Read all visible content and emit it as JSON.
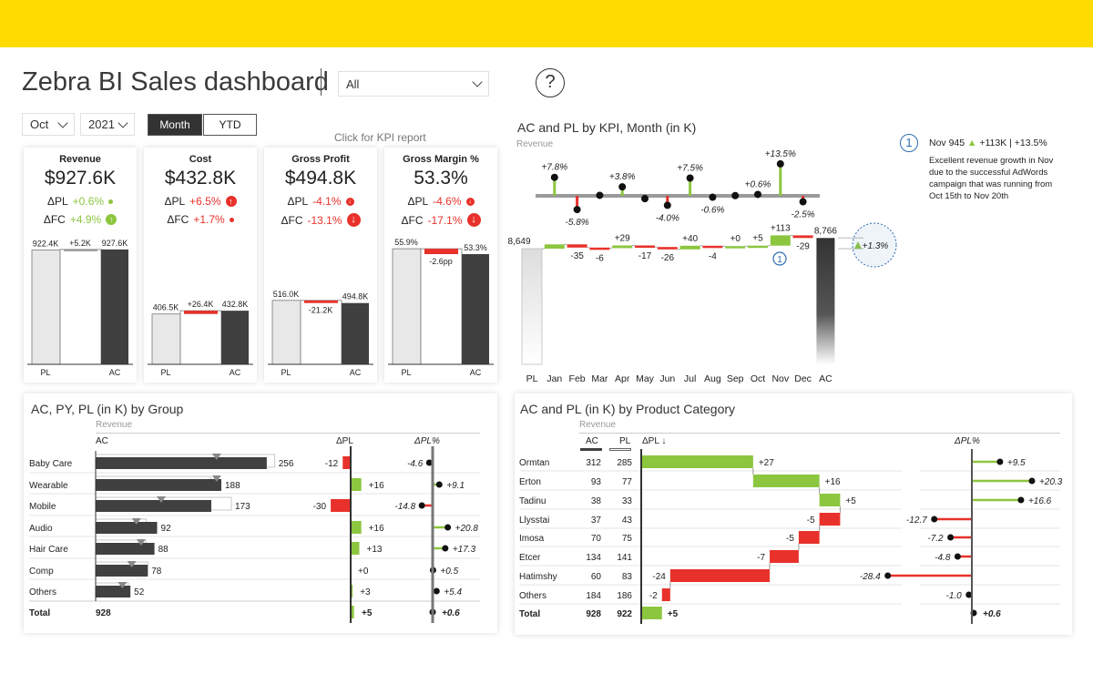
{
  "header": {
    "title": "Zebra BI Sales dashboard",
    "filter_value": "All",
    "help_label": "?"
  },
  "controls": {
    "month": "Oct",
    "year": "2021",
    "month_button": "Month",
    "ytd_button": "YTD",
    "kpi_link": "Click for KPI report"
  },
  "colors": {
    "brand_yellow": "#FFDB00",
    "good": "#8CC63F",
    "bad": "#E8312A",
    "ac": "#404040",
    "pl": "#E8E8E8",
    "annotation": "#2E6DB4"
  },
  "kpis": [
    {
      "title": "Revenue",
      "value": "$927.6K",
      "dpl_label": "ΔPL",
      "dpl": "+0.6%",
      "dpl_status": "good",
      "dpl_icon": "dot",
      "dfc_label": "ΔFC",
      "dfc": "+4.9%",
      "dfc_status": "good",
      "dfc_icon": "arrow-up-medium",
      "pl": 922.4,
      "ac": 927.6,
      "pl_label": "922.4K",
      "delta_label": "+5.2K",
      "ac_label": "927.6K",
      "x_pl": "PL",
      "x_ac": "AC"
    },
    {
      "title": "Cost",
      "value": "$432.8K",
      "dpl_label": "ΔPL",
      "dpl": "+6.5%",
      "dpl_status": "bad",
      "dpl_icon": "arrow-up-medium",
      "dfc_label": "ΔFC",
      "dfc": "+1.7%",
      "dfc_status": "bad",
      "dfc_icon": "dot",
      "pl": 406.5,
      "ac": 432.8,
      "pl_label": "406.5K",
      "delta_label": "+26.4K",
      "ac_label": "432.8K",
      "x_pl": "PL",
      "x_ac": "AC"
    },
    {
      "title": "Gross Profit",
      "value": "$494.8K",
      "dpl_label": "ΔPL",
      "dpl": "-4.1%",
      "dpl_status": "bad",
      "dpl_icon": "arrow-down-small",
      "dfc_label": "ΔFC",
      "dfc": "-13.1%",
      "dfc_status": "bad",
      "dfc_icon": "arrow-down-large",
      "pl": 516.0,
      "ac": 494.8,
      "pl_label": "516.0K",
      "delta_label": "-21.2K",
      "ac_label": "494.8K",
      "x_pl": "PL",
      "x_ac": "AC"
    },
    {
      "title": "Gross Margin %",
      "value": "53.3%",
      "dpl_label": "ΔPL",
      "dpl": "-4.6%",
      "dpl_status": "bad",
      "dpl_icon": "arrow-down-small",
      "dfc_label": "ΔFC",
      "dfc": "-17.1%",
      "dfc_status": "bad",
      "dfc_icon": "arrow-down-large",
      "pl": 55.9,
      "ac": 53.3,
      "pl_label": "55.9%",
      "delta_label": "-2.6pp",
      "ac_label": "53.3%",
      "x_pl": "PL",
      "x_ac": "AC"
    }
  ],
  "chart_data": [
    {
      "type": "waterfall",
      "title": "AC and PL by KPI, Month (in K)",
      "subtitle": "Revenue",
      "categories": [
        "PL",
        "Jan",
        "Feb",
        "Mar",
        "Apr",
        "May",
        "Jun",
        "Jul",
        "Aug",
        "Sep",
        "Oct",
        "Nov",
        "Dec",
        "AC"
      ],
      "start": 8649,
      "start_label": "8,649",
      "end": 8766,
      "end_label": "8,766",
      "deltas": [
        47,
        -35,
        -6,
        29,
        -17,
        -26,
        40,
        -4,
        0,
        5,
        113,
        -29
      ],
      "delta_labels": [
        "",
        "-35",
        "-6",
        "+29",
        "-17",
        "-26",
        "+40",
        "-4",
        "+0",
        "+5",
        "+113",
        "-29"
      ],
      "pct": [
        7.8,
        -5.8,
        0.2,
        3.8,
        -1.2,
        -4.0,
        7.5,
        -0.6,
        0.1,
        0.6,
        13.5,
        -2.5
      ],
      "pct_labels": [
        "+7.8%",
        "-5.8%",
        "",
        "+3.8%",
        "",
        "-4.0%",
        "+7.5%",
        "-0.6%",
        "",
        "+0.6%",
        "+13.5%",
        "-2.5%"
      ],
      "total_pct_label": "+1.3%",
      "annotation": {
        "marker": "1",
        "month": "Nov",
        "headline_prefix": "Nov 945",
        "headline_delta": "+113K | +13.5%",
        "lines": [
          "Excellent revenue growth in Nov",
          "due to the successful AdWords",
          "campaign that was running from",
          "Oct 15th to Nov 20th"
        ]
      }
    },
    {
      "type": "bar",
      "title": "AC, PY, PL (in K) by Group",
      "subtitle": "Revenue",
      "col_ac": "AC",
      "col_dpl": "ΔPL",
      "col_dplp": "ΔPL%",
      "rows": [
        {
          "name": "Baby Care",
          "ac": 256,
          "pl": 268,
          "py": 181,
          "dpl": -12,
          "dpl_label": "-12",
          "dplp": -4.6,
          "dplp_label": "-4.6"
        },
        {
          "name": "Wearable",
          "ac": 188,
          "pl": 172,
          "py": 181,
          "dpl": 16,
          "dpl_label": "+16",
          "dplp": 9.1,
          "dplp_label": "+9.1"
        },
        {
          "name": "Mobile",
          "ac": 173,
          "pl": 203,
          "py": 98,
          "dpl": -30,
          "dpl_label": "-30",
          "dplp": -14.8,
          "dplp_label": "-14.8"
        },
        {
          "name": "Audio",
          "ac": 92,
          "pl": 76,
          "py": 61,
          "dpl": 16,
          "dpl_label": "+16",
          "dplp": 20.8,
          "dplp_label": "+20.8"
        },
        {
          "name": "Hair Care",
          "ac": 88,
          "pl": 75,
          "py": 68,
          "dpl": 13,
          "dpl_label": "+13",
          "dplp": 17.3,
          "dplp_label": "+17.3"
        },
        {
          "name": "Comp",
          "ac": 78,
          "pl": 78,
          "py": 54,
          "dpl": 0,
          "dpl_label": "+0",
          "dplp": 0.5,
          "dplp_label": "+0.5"
        },
        {
          "name": "Others",
          "ac": 52,
          "pl": 49,
          "py": 40,
          "dpl": 3,
          "dpl_label": "+3",
          "dplp": 5.4,
          "dplp_label": "+5.4"
        }
      ],
      "total": {
        "name": "Total",
        "ac_label": "928",
        "dpl": 5,
        "dpl_label": "+5",
        "dplp": 0.6,
        "dplp_label": "+0.6"
      }
    },
    {
      "type": "waterfall-table",
      "title": "AC and PL (in K) by Product Category",
      "subtitle": "Revenue",
      "col_ac": "AC",
      "col_pl": "PL",
      "col_dpl": "ΔPL ↓",
      "col_dplp": "ΔPL%",
      "rows": [
        {
          "name": "Ormtan",
          "ac": 312,
          "pl": 285,
          "dpl": 27,
          "dpl_label": "+27",
          "dplp": 9.5,
          "dplp_label": "+9.5"
        },
        {
          "name": "Erton",
          "ac": 93,
          "pl": 77,
          "dpl": 16,
          "dpl_label": "+16",
          "dplp": 20.3,
          "dplp_label": "+20.3"
        },
        {
          "name": "Tadinu",
          "ac": 38,
          "pl": 33,
          "dpl": 5,
          "dpl_label": "+5",
          "dplp": 16.6,
          "dplp_label": "+16.6"
        },
        {
          "name": "Llysstai",
          "ac": 37,
          "pl": 43,
          "dpl": -5,
          "dpl_label": "-5",
          "dplp": -12.7,
          "dplp_label": "-12.7"
        },
        {
          "name": "Imosa",
          "ac": 70,
          "pl": 75,
          "dpl": -5,
          "dpl_label": "-5",
          "dplp": -7.2,
          "dplp_label": "-7.2"
        },
        {
          "name": "Etcer",
          "ac": 134,
          "pl": 141,
          "dpl": -7,
          "dpl_label": "-7",
          "dplp": -4.8,
          "dplp_label": "-4.8"
        },
        {
          "name": "Hatimshy",
          "ac": 60,
          "pl": 83,
          "dpl": -24,
          "dpl_label": "-24",
          "dplp": -28.4,
          "dplp_label": "-28.4"
        },
        {
          "name": "Others",
          "ac": 184,
          "pl": 186,
          "dpl": -2,
          "dpl_label": "-2",
          "dplp": -1.0,
          "dplp_label": "-1.0"
        }
      ],
      "total": {
        "name": "Total",
        "ac": 928,
        "pl": 922,
        "dpl": 5,
        "dpl_label": "+5",
        "dplp": 0.6,
        "dplp_label": "+0.6"
      }
    }
  ]
}
